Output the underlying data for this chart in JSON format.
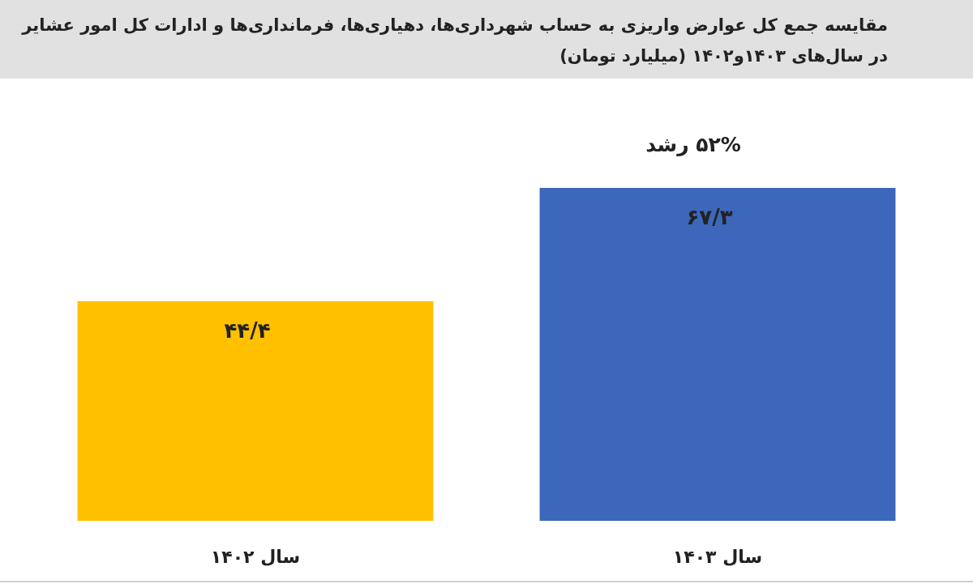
{
  "chart_data": {
    "type": "bar",
    "title": "مقایسه جمع کل عوارض واریزی به حساب شهرداری‌ها، دهیاری‌ها، فرمانداری‌ها و ادارات کل امور عشایر",
    "subtitle": "در سال‌های ۱۴۰۳و۱۴۰۲  (میلیارد تومان)",
    "categories": [
      "سال ۱۴۰۲",
      "سال ۱۴۰۳"
    ],
    "values": [
      44.4,
      67.3
    ],
    "colors": [
      "#ffc000",
      "#3d67bb"
    ],
    "value_labels": [
      "۴۴/۴",
      "۶۷/۳"
    ],
    "annotations": [
      {
        "text": "۵۲% رشد",
        "x": "سال ۱۴۰۳",
        "y": 67.3
      }
    ]
  }
}
